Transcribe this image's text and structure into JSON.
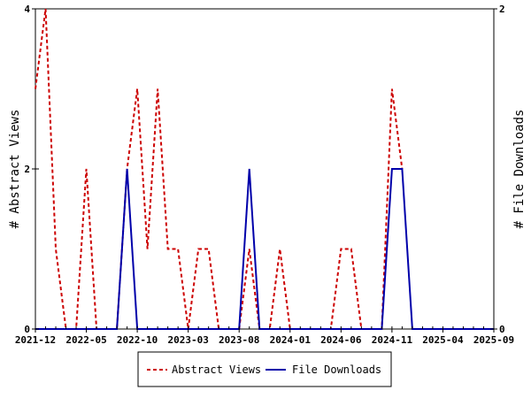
{
  "chart_data": {
    "type": "line",
    "x_tick_labels": [
      "2021-12",
      "2022-05",
      "2022-10",
      "2023-03",
      "2023-08",
      "2024-01",
      "2024-06",
      "2024-11",
      "2025-04",
      "2025-09"
    ],
    "x_range": [
      "2021-12",
      "2025-09"
    ],
    "y_left": {
      "label": "# Abstract Views",
      "ticks": [
        "0",
        "2",
        "4"
      ],
      "range": [
        0,
        4
      ]
    },
    "y_right": {
      "label": "# File Downloads",
      "ticks": [
        "0",
        "2"
      ],
      "range": [
        0,
        2
      ]
    },
    "grid": false,
    "legend_position": "bottom",
    "series": [
      {
        "name": "Abstract Views",
        "axis": "left",
        "color": "#cc0000",
        "style": "dashed",
        "values": [
          [
            "2021-12",
            3
          ],
          [
            "2022-01",
            4
          ],
          [
            "2022-02",
            1
          ],
          [
            "2022-03",
            0
          ],
          [
            "2022-04",
            0
          ],
          [
            "2022-05",
            2
          ],
          [
            "2022-06",
            0
          ],
          [
            "2022-07",
            0
          ],
          [
            "2022-08",
            0
          ],
          [
            "2022-09",
            2
          ],
          [
            "2022-10",
            3
          ],
          [
            "2022-11",
            1
          ],
          [
            "2022-12",
            3
          ],
          [
            "2023-01",
            1
          ],
          [
            "2023-02",
            1
          ],
          [
            "2023-03",
            0
          ],
          [
            "2023-04",
            1
          ],
          [
            "2023-05",
            1
          ],
          [
            "2023-06",
            0
          ],
          [
            "2023-07",
            0
          ],
          [
            "2023-08",
            0
          ],
          [
            "2023-09",
            1
          ],
          [
            "2023-10",
            0
          ],
          [
            "2023-11",
            0
          ],
          [
            "2023-12",
            1
          ],
          [
            "2024-01",
            0
          ],
          [
            "2024-02",
            0
          ],
          [
            "2024-03",
            0
          ],
          [
            "2024-04",
            0
          ],
          [
            "2024-05",
            0
          ],
          [
            "2024-06",
            1
          ],
          [
            "2024-07",
            1
          ],
          [
            "2024-08",
            0
          ],
          [
            "2024-09",
            0
          ],
          [
            "2024-10",
            0
          ],
          [
            "2024-11",
            3
          ],
          [
            "2024-12",
            2
          ]
        ]
      },
      {
        "name": "File Downloads",
        "axis": "right",
        "color": "#0000aa",
        "style": "solid",
        "values": [
          [
            "2021-12",
            0
          ],
          [
            "2022-01",
            0
          ],
          [
            "2022-02",
            0
          ],
          [
            "2022-03",
            0
          ],
          [
            "2022-04",
            0
          ],
          [
            "2022-05",
            0
          ],
          [
            "2022-06",
            0
          ],
          [
            "2022-07",
            0
          ],
          [
            "2022-08",
            0
          ],
          [
            "2022-09",
            1
          ],
          [
            "2022-10",
            0
          ],
          [
            "2022-11",
            0
          ],
          [
            "2022-12",
            0
          ],
          [
            "2023-01",
            0
          ],
          [
            "2023-02",
            0
          ],
          [
            "2023-03",
            0
          ],
          [
            "2023-04",
            0
          ],
          [
            "2023-05",
            0
          ],
          [
            "2023-06",
            0
          ],
          [
            "2023-07",
            0
          ],
          [
            "2023-08",
            0
          ],
          [
            "2023-09",
            1
          ],
          [
            "2023-10",
            0
          ],
          [
            "2023-11",
            0
          ],
          [
            "2023-12",
            0
          ],
          [
            "2024-01",
            0
          ],
          [
            "2024-02",
            0
          ],
          [
            "2024-03",
            0
          ],
          [
            "2024-04",
            0
          ],
          [
            "2024-05",
            0
          ],
          [
            "2024-06",
            0
          ],
          [
            "2024-07",
            0
          ],
          [
            "2024-08",
            0
          ],
          [
            "2024-09",
            0
          ],
          [
            "2024-10",
            0
          ],
          [
            "2024-11",
            1
          ],
          [
            "2024-12",
            1
          ],
          [
            "2025-01",
            0
          ],
          [
            "2025-02",
            0
          ],
          [
            "2025-03",
            0
          ],
          [
            "2025-04",
            0
          ],
          [
            "2025-05",
            0
          ],
          [
            "2025-06",
            0
          ],
          [
            "2025-07",
            0
          ],
          [
            "2025-08",
            0
          ],
          [
            "2025-09",
            0
          ]
        ]
      }
    ]
  }
}
